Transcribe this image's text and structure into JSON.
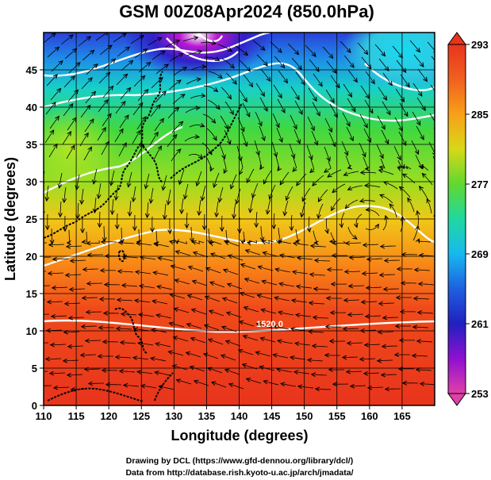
{
  "title": "GSM 00Z08Apr2024 (850.0hPa)",
  "x_axis": {
    "label": "Longitude (degrees)",
    "range": [
      110,
      170
    ],
    "ticks": [
      "110",
      "115",
      "120",
      "125",
      "130",
      "135",
      "140",
      "145",
      "150",
      "155",
      "160",
      "165"
    ]
  },
  "y_axis": {
    "label": "Latitude  (degrees)",
    "range": [
      0,
      50
    ],
    "ticks": [
      "0",
      "5",
      "10",
      "15",
      "20",
      "25",
      "30",
      "35",
      "40",
      "45"
    ]
  },
  "colorbar": {
    "ticks": [
      "293",
      "285",
      "277",
      "269",
      "261",
      "253"
    ],
    "range": [
      253,
      293
    ],
    "colors": [
      "#e64a8c",
      "#b010d0",
      "#3020c8",
      "#1e80e8",
      "#18d8e0",
      "#40d840",
      "#a0e020",
      "#f8c818",
      "#f87818",
      "#e83a20"
    ]
  },
  "contour_label": "1520.0",
  "credits": {
    "line1": "Drawing by DCL (https://www.gfd-dennou.org/library/dcl/)",
    "line2": "Data from http://database.rish.kyoto-u.ac.jp/arch/jmadata/"
  }
}
